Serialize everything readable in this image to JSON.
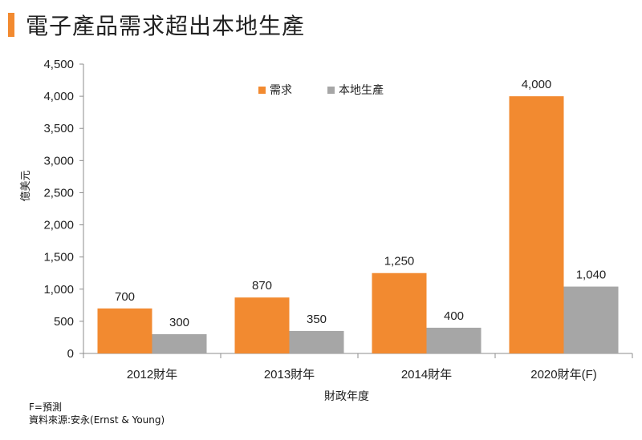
{
  "page": {
    "title": "電子產品需求超出本地生產",
    "footnote": "F=預測",
    "source": "資料來源:安永(Ernst & Young)"
  },
  "chart_data": {
    "type": "bar",
    "categories": [
      "2012財年",
      "2013財年",
      "2014財年",
      "2020財年(F)"
    ],
    "series": [
      {
        "name": "需求",
        "values": [
          700,
          870,
          1250,
          4000
        ],
        "color": "#f28a30"
      },
      {
        "name": "本地生產",
        "values": [
          300,
          350,
          400,
          1040
        ],
        "color": "#a6a6a6"
      }
    ],
    "data_labels": [
      [
        "700",
        "870",
        "1,250",
        "4,000"
      ],
      [
        "300",
        "350",
        "400",
        "1,040"
      ]
    ],
    "ylim": [
      0,
      4500
    ],
    "yticks": [
      0,
      500,
      1000,
      1500,
      2000,
      2500,
      3000,
      3500,
      4000,
      4500
    ],
    "ytick_labels": [
      "0",
      "500",
      "1,000",
      "1,500",
      "2,000",
      "2,500",
      "3,000",
      "3,500",
      "4,000",
      "4,500"
    ],
    "ylabel": "億美元",
    "xlabel": "財政年度",
    "legend_position": "top-center",
    "grid": false
  }
}
